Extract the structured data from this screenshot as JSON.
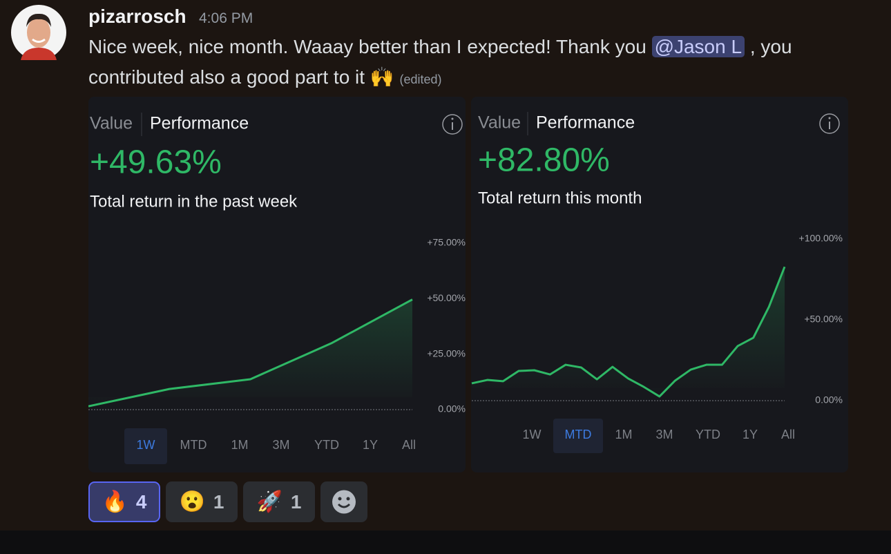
{
  "message": {
    "author": "pizarrosch",
    "time": "4:06 PM",
    "text": [
      "Nice week, nice month. Waaay better than I expected! Thank you",
      ", you",
      "contributed also a good part to it"
    ],
    "mention": "@Jason L",
    "emoji": "🙌",
    "edited": "(edited)"
  },
  "chart_data": [
    {
      "type": "line",
      "tabs": [
        "Value",
        "Performance"
      ],
      "active_tab": 1,
      "headline": "+49.63%",
      "subtitle": "Total return in the past week",
      "color": "#2fb866",
      "categories": [
        null,
        null,
        null,
        null,
        null
      ],
      "values": [
        1.5,
        9.3,
        13.7,
        29.9,
        49.63
      ],
      "ylim": [
        0,
        75
      ],
      "yticks": [
        {
          "value": 0,
          "label": "0.00%"
        },
        {
          "value": 25,
          "label": "+25.00%"
        },
        {
          "value": 50,
          "label": "+50.00%"
        },
        {
          "value": 75,
          "label": "+75.00%"
        }
      ],
      "periods": [
        "1W",
        "MTD",
        "1M",
        "3M",
        "YTD",
        "1Y",
        "All"
      ],
      "selected_period": 0
    },
    {
      "type": "line",
      "tabs": [
        "Value",
        "Performance"
      ],
      "active_tab": 1,
      "headline": "+82.80%",
      "subtitle": "Total return this month",
      "color": "#2fb866",
      "categories": [
        null,
        null,
        null,
        null,
        null,
        null,
        null,
        null,
        null,
        null,
        null,
        null,
        null,
        null,
        null,
        null,
        null,
        null,
        null,
        null,
        null
      ],
      "values": [
        10.7,
        12.8,
        12,
        18.4,
        18.8,
        16.2,
        22.2,
        20.5,
        13.2,
        20.9,
        13.7,
        8.5,
        2.6,
        12.4,
        19.2,
        22.2,
        22.2,
        33.8,
        38.9,
        58.1,
        82.8
      ],
      "ylim": [
        0,
        100
      ],
      "yticks": [
        {
          "value": 0,
          "label": "0.00%"
        },
        {
          "value": 50,
          "label": "+50.00%"
        },
        {
          "value": 100,
          "label": "+100.00%"
        }
      ],
      "periods": [
        "1W",
        "MTD",
        "1M",
        "3M",
        "YTD",
        "1Y",
        "All"
      ],
      "selected_period": 1
    }
  ],
  "reactions": [
    {
      "emoji": "🔥",
      "count": 4,
      "selected": true
    },
    {
      "emoji": "😮",
      "count": 1,
      "selected": false
    },
    {
      "emoji": "🚀",
      "count": 1,
      "selected": false
    }
  ]
}
